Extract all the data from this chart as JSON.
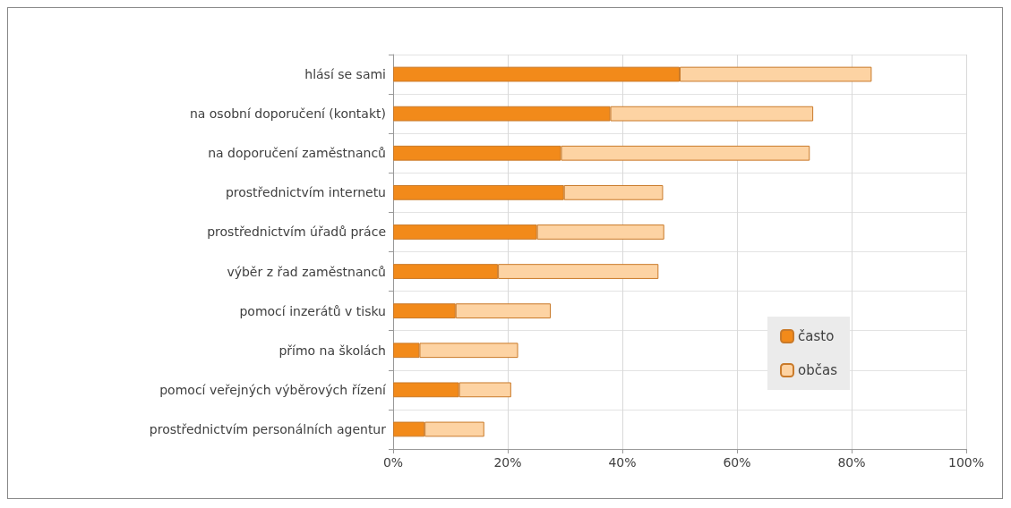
{
  "chart_data": {
    "type": "bar",
    "orientation": "horizontal",
    "stacked": true,
    "categories": [
      "hlásí se sami",
      "na osobní doporučení (kontakt)",
      "na doporučení zaměstnanců",
      "prostřednictvím internetu",
      "prostřednictvím úřadů práce",
      "výběr z řad zaměstnanců",
      "pomocí inzerátů v tisku",
      "přímo na školách",
      "pomocí veřejných výběrových řízení",
      "prostřednictvím personálních agentur"
    ],
    "series": [
      {
        "name": "často",
        "color": "#f28a1a",
        "values": [
          50.0,
          37.9,
          29.3,
          29.8,
          25.1,
          18.3,
          10.9,
          4.6,
          11.5,
          5.5
        ]
      },
      {
        "name": "občas",
        "color": "#fdd3a3",
        "values": [
          33.5,
          35.4,
          43.4,
          17.3,
          22.2,
          28.0,
          16.6,
          17.2,
          9.1,
          10.4
        ]
      }
    ],
    "xlim": [
      0,
      100
    ],
    "xticks": [
      {
        "value": 0,
        "label": "0%"
      },
      {
        "value": 20,
        "label": "20%"
      },
      {
        "value": 40,
        "label": "40%"
      },
      {
        "value": 60,
        "label": "60%"
      },
      {
        "value": 80,
        "label": "80%"
      },
      {
        "value": 100,
        "label": "100%"
      }
    ],
    "grid": true,
    "legend": "right"
  }
}
